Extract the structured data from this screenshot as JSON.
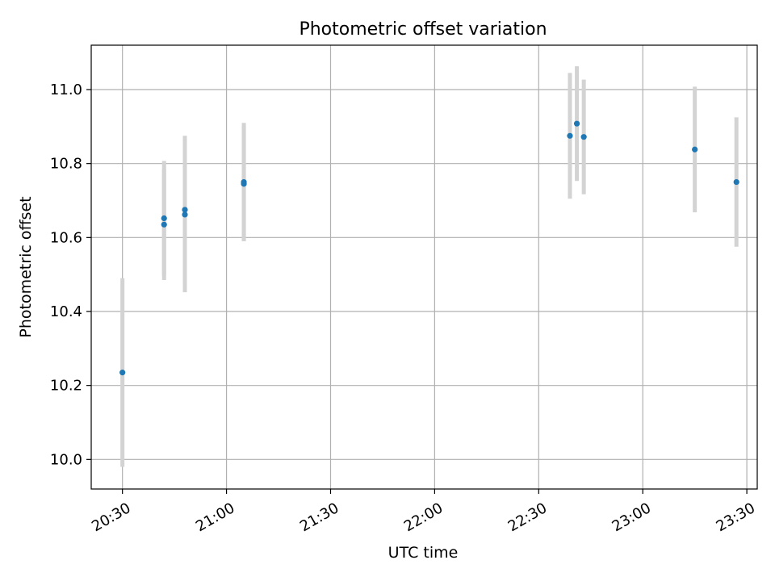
{
  "chart_data": {
    "type": "scatter",
    "title": "Photometric offset variation",
    "xlabel": "UTC time",
    "ylabel": "Photometric offset",
    "x_axis": "time",
    "xlim": [
      "20:21",
      "23:33"
    ],
    "ylim": [
      9.92,
      11.12
    ],
    "x_ticks": [
      "20:30",
      "21:00",
      "21:30",
      "22:00",
      "22:30",
      "23:00",
      "23:30"
    ],
    "y_ticks": [
      10.0,
      10.2,
      10.4,
      10.6,
      10.8,
      11.0
    ],
    "grid": true,
    "colors": {
      "marker": "#1f77b4",
      "error_bar": "#d3d3d3",
      "grid": "#b0b0b0",
      "axis": "#000000"
    },
    "points": [
      {
        "x": "20:30",
        "y": 10.235,
        "err": 0.255
      },
      {
        "x": "20:42",
        "y": 10.652,
        "err": 0.155
      },
      {
        "x": "20:42",
        "y": 10.635,
        "err": 0.15
      },
      {
        "x": "20:48",
        "y": 10.662,
        "err": 0.21
      },
      {
        "x": "20:48",
        "y": 10.675,
        "err": 0.2
      },
      {
        "x": "21:05",
        "y": 10.75,
        "err": 0.16
      },
      {
        "x": "21:05",
        "y": 10.745,
        "err": 0.155
      },
      {
        "x": "22:39",
        "y": 10.875,
        "err": 0.17
      },
      {
        "x": "22:41",
        "y": 10.908,
        "err": 0.155
      },
      {
        "x": "22:43",
        "y": 10.872,
        "err": 0.155
      },
      {
        "x": "23:15",
        "y": 10.838,
        "err": 0.17
      },
      {
        "x": "23:27",
        "y": 10.75,
        "err": 0.175
      }
    ]
  }
}
